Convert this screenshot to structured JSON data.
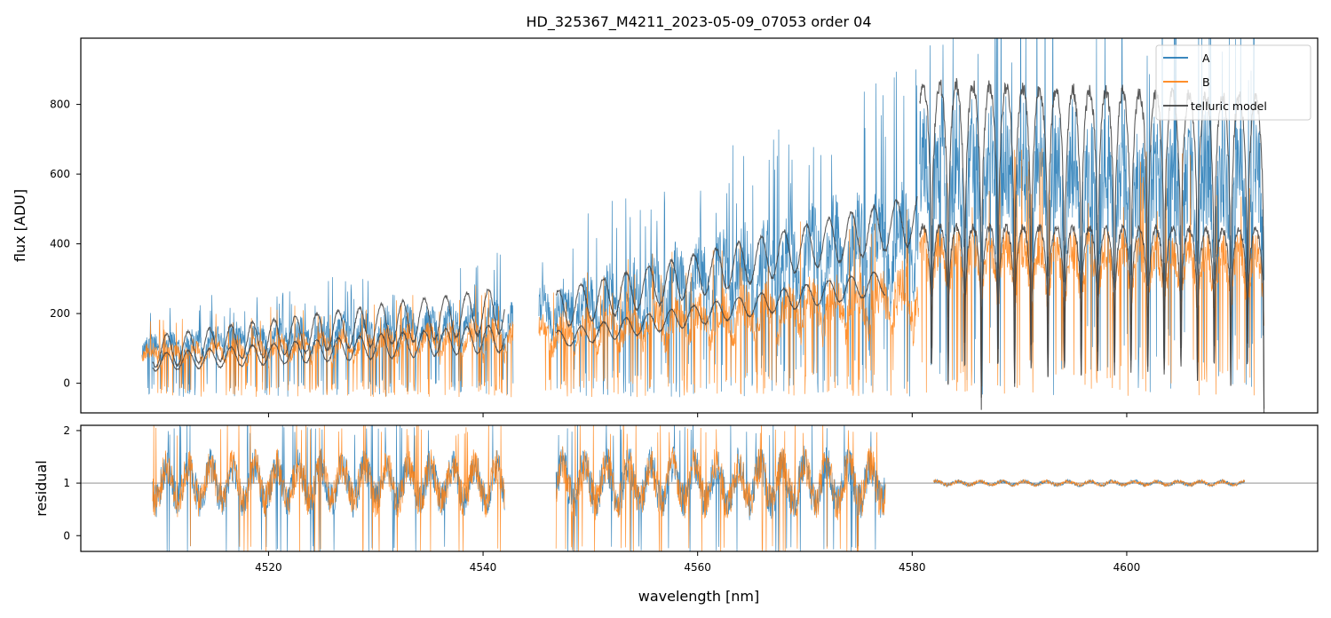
{
  "chart_data": {
    "type": "line",
    "title": "HD_325367_M4211_2023-05-09_07053  order 04",
    "xlabel": "wavelength [nm]",
    "xlim": [
      4502.5,
      4617.8
    ],
    "xticks": [
      4520,
      4540,
      4560,
      4580,
      4600
    ],
    "panels": [
      {
        "id": "flux",
        "ylabel": "flux [ADU]",
        "ylim": [
          -85,
          990
        ],
        "yticks": [
          0,
          200,
          400,
          600,
          800
        ],
        "series": [
          {
            "name": "A",
            "color": "#1f77b4",
            "segments": [
              {
                "x0": 4508.2,
                "x1": 4542.8,
                "base0": 150,
                "base1": 260,
                "amp": 0.75,
                "period": 2.0,
                "deep": 6
              },
              {
                "x0": 4545.2,
                "x1": 4580.6,
                "base0": 290,
                "base1": 620,
                "amp": 0.8,
                "period": 2.1,
                "deep": 5
              },
              {
                "x0": 4580.7,
                "x1": 4612.8,
                "base0": 850,
                "base1": 780,
                "amp": 0.85,
                "period": 1.55,
                "deep": 3
              }
            ]
          },
          {
            "name": "B",
            "color": "#ff7f0e",
            "segments": [
              {
                "x0": 4508.2,
                "x1": 4542.8,
                "base0": 120,
                "base1": 195,
                "amp": 0.8,
                "period": 2.0,
                "deep": 6
              },
              {
                "x0": 4545.2,
                "x1": 4580.6,
                "base0": 200,
                "base1": 360,
                "amp": 0.85,
                "period": 2.1,
                "deep": 5
              },
              {
                "x0": 4580.7,
                "x1": 4612.8,
                "base0": 460,
                "base1": 440,
                "amp": 0.55,
                "period": 1.55,
                "deep": 4
              }
            ]
          }
        ],
        "model": {
          "name": "telluric model",
          "color": "#404040",
          "segments": [
            {
              "x0": 4509.2,
              "x1": 4542.0,
              "c0": 90,
              "c1": 210,
              "a0": 45,
              "a1": 65,
              "period": 2.0
            },
            {
              "x0": 4509.2,
              "x1": 4542.0,
              "c0": 60,
              "c1": 130,
              "a0": 25,
              "a1": 40,
              "period": 2.0
            },
            {
              "x0": 4546.8,
              "x1": 4580.5,
              "c0": 210,
              "c1": 470,
              "a0": 55,
              "a1": 70,
              "period": 2.1
            },
            {
              "x0": 4546.8,
              "x1": 4577.5,
              "c0": 125,
              "c1": 290,
              "a0": 25,
              "a1": 35,
              "period": 2.1
            },
            {
              "x0": 4580.7,
              "x1": 4612.8,
              "c0": 860,
              "c1": 820,
              "a0": 0,
              "a1": 0,
              "period": 1.55,
              "dips": true
            },
            {
              "x0": 4580.7,
              "x1": 4612.8,
              "c0": 450,
              "c1": 440,
              "a0": 0,
              "a1": 0,
              "period": 1.55,
              "dips": true
            }
          ]
        }
      },
      {
        "id": "residual",
        "ylabel": "residual",
        "ylim": [
          -0.3,
          2.1
        ],
        "yticks": [
          0,
          1,
          2
        ],
        "reference_line": 1,
        "segments": [
          {
            "x0": 4509.2,
            "x1": 4542.0,
            "noise": 0.55
          },
          {
            "x0": 4546.8,
            "x1": 4577.5,
            "noise": 0.6
          },
          {
            "x0": 4582.0,
            "x1": 4611.0,
            "noise": 0.06
          }
        ]
      }
    ],
    "legend": {
      "position": "top-right",
      "entries": [
        "A",
        "B",
        "telluric model"
      ]
    }
  }
}
